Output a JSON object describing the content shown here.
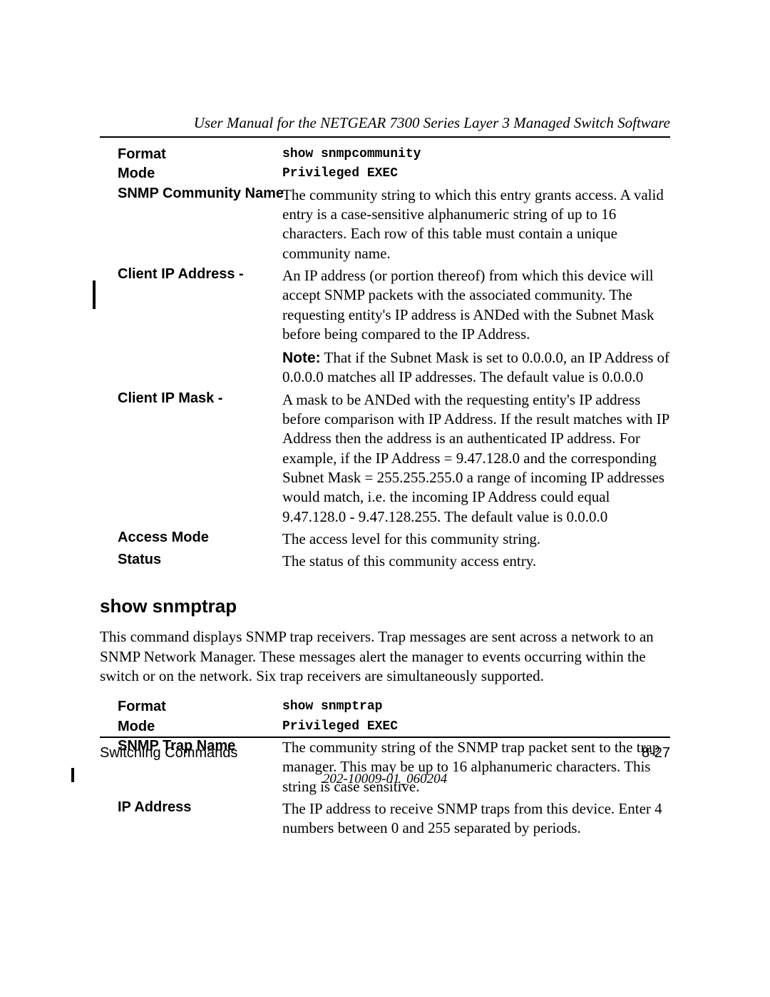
{
  "header": {
    "title": "User Manual for the NETGEAR 7300 Series Layer 3 Managed Switch Software"
  },
  "section1": {
    "rows": {
      "format": {
        "label": "Format",
        "value": "show snmpcommunity"
      },
      "mode": {
        "label": "Mode",
        "value": "Privileged EXEC"
      },
      "community_name": {
        "label": "SNMP Community Name",
        "value": "The community string to which this entry grants access. A valid entry is a case-sensitive alphanumeric string of up to 16 characters. Each row of this table must contain a unique community name."
      },
      "client_ip_address": {
        "label": "Client IP Address -",
        "value_main": "An IP address (or portion thereof) from which this device will accept SNMP packets with the associated community. The requesting entity's IP address is ANDed with the Subnet Mask before being compared to the IP Address.",
        "note_label": "Note:",
        "note_text": " That if the Subnet Mask is set to 0.0.0.0, an IP Address of 0.0.0.0 matches all IP addresses. The default value is 0.0.0.0"
      },
      "client_ip_mask": {
        "label": "Client IP Mask -",
        "value": "A mask to be ANDed with the requesting entity's IP address before comparison with IP Address. If the result matches with IP Address then the address is an authenticated IP address. For example, if the IP Address = 9.47.128.0 and the corresponding Subnet Mask = 255.255.255.0 a range of incoming IP addresses would match, i.e. the incoming IP Address could equal 9.47.128.0 - 9.47.128.255. The default value is 0.0.0.0"
      },
      "access_mode": {
        "label": "Access Mode",
        "value": "The access level for this community string."
      },
      "status": {
        "label": "Status",
        "value": "The status of this community access entry."
      }
    }
  },
  "section2": {
    "heading": "show snmptrap",
    "intro": "This command displays SNMP trap receivers. Trap messages are sent across a network to an SNMP Network Manager. These messages alert the manager to events occurring within the switch or on the network. Six trap receivers are simultaneously supported.",
    "rows": {
      "format": {
        "label": "Format",
        "value": "show snmptrap"
      },
      "mode": {
        "label": "Mode",
        "value": "Privileged EXEC"
      },
      "trap_name": {
        "label": "SNMP Trap Name",
        "value": "The community string of the SNMP trap packet sent to the trap manager. This may be up to 16 alphanumeric characters. This string is case sensitive."
      },
      "ip_address": {
        "label": "IP Address",
        "value": "The IP address to receive SNMP traps from this device. Enter 4 numbers between 0 and 255 separated by periods."
      }
    }
  },
  "footer": {
    "left": "Switching Commands",
    "right": "8-27",
    "docnum": "202-10009-01_060204"
  }
}
